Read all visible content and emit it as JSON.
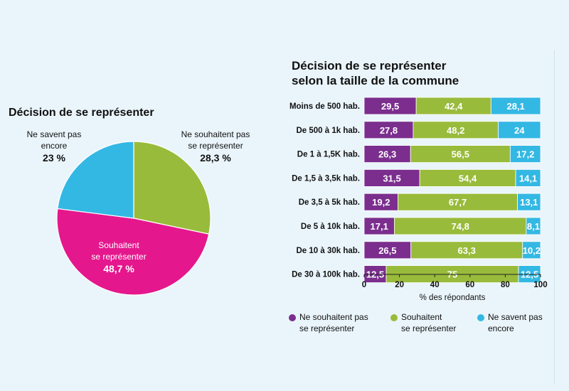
{
  "colors": {
    "purple": "#7b2e8e",
    "green": "#99bb3b",
    "cyan": "#33b8e4",
    "magenta": "#e5178d"
  },
  "chart_data": [
    {
      "type": "pie",
      "title": "Décision de se représenter",
      "slices": [
        {
          "label": "Ne souhaitent pas se représenter",
          "value": 28.3,
          "value_label": "28,3 %",
          "color": "#99bb3b"
        },
        {
          "label": "Souhaitent se représenter",
          "value": 48.7,
          "value_label": "48,7 %",
          "color": "#e5178d"
        },
        {
          "label": "Ne savent pas encore",
          "value": 23,
          "value_label": "23 %",
          "color": "#33b8e4"
        }
      ]
    },
    {
      "type": "bar",
      "orientation": "horizontal",
      "stacked": true,
      "title_lines": [
        "Décision de se représenter",
        "selon la taille de la commune"
      ],
      "categories": [
        "Moins de 500 hab.",
        "De 500 à 1k hab.",
        "De 1 à 1,5K hab.",
        "De 1,5 à 3,5k hab.",
        "De 3,5 à 5k hab.",
        "De 5 à 10k hab.",
        "De 10 à 30k hab.",
        "De 30 à 100k hab."
      ],
      "series": [
        {
          "name": "Ne souhaitent pas se représenter",
          "color": "#7b2e8e",
          "values": [
            29.5,
            27.8,
            26.3,
            31.5,
            19.2,
            17.1,
            26.5,
            12.5
          ],
          "labels": [
            "29,5",
            "27,8",
            "26,3",
            "31,5",
            "19,2",
            "17,1",
            "26,5",
            "12,5"
          ]
        },
        {
          "name": "Souhaitent se représenter",
          "color": "#99bb3b",
          "values": [
            42.4,
            48.2,
            56.5,
            54.4,
            67.7,
            74.8,
            63.3,
            75
          ],
          "labels": [
            "42,4",
            "48,2",
            "56,5",
            "54,4",
            "67,7",
            "74,8",
            "63,3",
            "75"
          ]
        },
        {
          "name": "Ne savent pas encore",
          "color": "#33b8e4",
          "values": [
            28.1,
            24,
            17.2,
            14.1,
            13.1,
            8.1,
            10.2,
            12.5
          ],
          "labels": [
            "28,1",
            "24",
            "17,2",
            "14,1",
            "13,1",
            "8,1",
            "10,2",
            "12,5"
          ]
        }
      ],
      "xlim": [
        0,
        100
      ],
      "xticks": [
        "0",
        "20",
        "40",
        "60",
        "80",
        "100"
      ],
      "xlabel": "% des répondants",
      "legend": {
        "position": "bottom",
        "items": [
          {
            "line1": "Ne souhaitent pas",
            "line2": "se représenter",
            "color": "#7b2e8e"
          },
          {
            "line1": "Souhaitent",
            "line2": "se représenter",
            "color": "#99bb3b"
          },
          {
            "line1": "Ne savent pas",
            "line2": "encore",
            "color": "#33b8e4"
          }
        ]
      }
    }
  ],
  "pie_labels": [
    {
      "line1": "Ne souhaitent pas",
      "line2": "se représenter",
      "pct": "28,3 %"
    },
    {
      "line1": "Souhaitent",
      "line2": "se représenter",
      "pct": "48,7 %"
    },
    {
      "line1": "Ne savent pas",
      "line2": "encore",
      "pct": "23 %"
    }
  ]
}
